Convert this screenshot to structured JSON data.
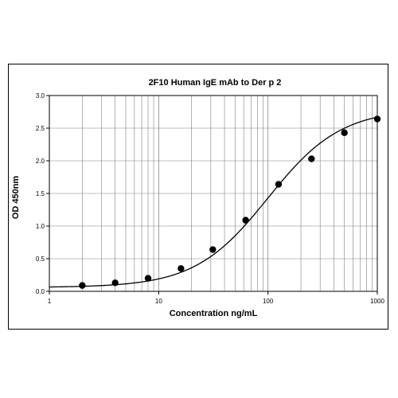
{
  "chart_data": {
    "type": "scatter",
    "title": "2F10 Human IgE mAb to Der p 2",
    "xlabel": "Concentration ng/mL",
    "ylabel": "OD 450nm",
    "xscale": "log",
    "xlim": [
      1,
      1000
    ],
    "ylim": [
      0,
      3.0
    ],
    "xticks": [
      "1",
      "10",
      "100",
      "1000"
    ],
    "yticks": [
      "0.0",
      "0.5",
      "1.0",
      "1.5",
      "2.0",
      "2.5",
      "3.0"
    ],
    "grid": true,
    "legend": "none",
    "series": [
      {
        "x": [
          2,
          4,
          8,
          16,
          31.25,
          62.5,
          125,
          250,
          500,
          1000
        ],
        "y": [
          0.09,
          0.13,
          0.2,
          0.35,
          0.64,
          1.09,
          1.64,
          2.03,
          2.43,
          2.64
        ],
        "marker": "circle",
        "color": "#000000"
      }
    ],
    "fit_curve": {
      "type": "4PL",
      "bottom": 0.06,
      "top": 2.8,
      "ec50": 100,
      "hill": 1.3,
      "color": "#000000"
    }
  }
}
